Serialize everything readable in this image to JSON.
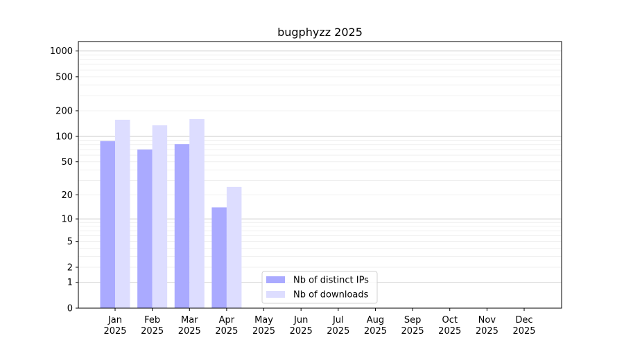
{
  "chart_data": {
    "type": "bar",
    "title": "bugphyzz 2025",
    "xlabel": "",
    "ylabel": "",
    "yscale": "log(1+y)",
    "ylim": [
      0,
      1290
    ],
    "yticks": [
      0,
      1,
      2,
      5,
      10,
      20,
      50,
      100,
      200,
      500,
      1000
    ],
    "grid": true,
    "legend_position": "lower-center",
    "categories": [
      "Jan\n2025",
      "Feb\n2025",
      "Mar\n2025",
      "Apr\n2025",
      "May\n2025",
      "Jun\n2025",
      "Jul\n2025",
      "Aug\n2025",
      "Sep\n2025",
      "Oct\n2025",
      "Nov\n2025",
      "Dec\n2025"
    ],
    "series": [
      {
        "name": "Nb of distinct IPs",
        "color": "#aaaaff",
        "values": [
          88,
          70,
          81,
          14,
          0,
          0,
          0,
          0,
          0,
          0,
          0,
          0
        ]
      },
      {
        "name": "Nb of downloads",
        "color": "#ddddff",
        "values": [
          157,
          135,
          160,
          25,
          0,
          0,
          0,
          0,
          0,
          0,
          0,
          0
        ]
      }
    ]
  }
}
